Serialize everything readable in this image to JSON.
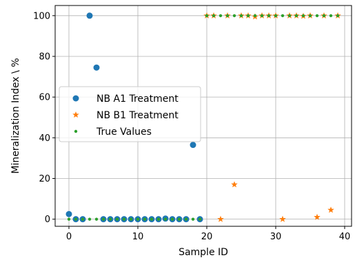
{
  "chart_data": {
    "type": "scatter",
    "title": "",
    "xlabel": "Sample ID",
    "ylabel": "Mineralization Index \\ %",
    "xlim": [
      -2,
      41
    ],
    "ylim": [
      -3.5,
      105
    ],
    "xticks": [
      0,
      10,
      20,
      30,
      40
    ],
    "yticks": [
      0,
      20,
      40,
      60,
      80,
      100
    ],
    "grid": true,
    "legend_position": "center-left",
    "series": [
      {
        "name": "NB A1 Treatment",
        "marker": "circle",
        "color": "#1f77b4",
        "x": [
          0,
          1,
          2,
          3,
          4,
          5,
          6,
          7,
          8,
          9,
          10,
          11,
          12,
          13,
          14,
          15,
          16,
          17,
          18,
          19
        ],
        "y": [
          2.5,
          0,
          0,
          100,
          74.5,
          0,
          0,
          0,
          0,
          0,
          0,
          0,
          0,
          0,
          0.3,
          0,
          0,
          0,
          36.5,
          0
        ]
      },
      {
        "name": "NB B1 Treatment",
        "marker": "star",
        "color": "#ff7f0e",
        "x": [
          20,
          21,
          22,
          23,
          24,
          25,
          26,
          27,
          28,
          29,
          30,
          31,
          32,
          33,
          34,
          35,
          36,
          37,
          38,
          39
        ],
        "y": [
          100,
          100,
          0,
          100,
          17,
          100,
          100,
          99.5,
          100,
          100,
          100,
          0,
          100,
          100,
          99.8,
          100,
          1,
          100,
          4.5,
          100
        ]
      },
      {
        "name": "True Values",
        "marker": "point",
        "color": "#2ca02c",
        "x": [
          0,
          1,
          2,
          3,
          4,
          5,
          6,
          7,
          8,
          9,
          10,
          11,
          12,
          13,
          14,
          15,
          16,
          17,
          18,
          19,
          20,
          21,
          22,
          23,
          24,
          25,
          26,
          27,
          28,
          29,
          30,
          31,
          32,
          33,
          34,
          35,
          36,
          37,
          38,
          39
        ],
        "y": [
          0,
          0,
          0,
          0,
          0,
          0,
          0,
          0,
          0,
          0,
          0,
          0,
          0,
          0,
          0,
          0,
          0,
          0,
          0,
          0,
          100,
          100,
          100,
          100,
          100,
          100,
          100,
          100,
          100,
          100,
          100,
          100,
          100,
          100,
          100,
          100,
          100,
          100,
          100,
          100
        ]
      }
    ]
  }
}
